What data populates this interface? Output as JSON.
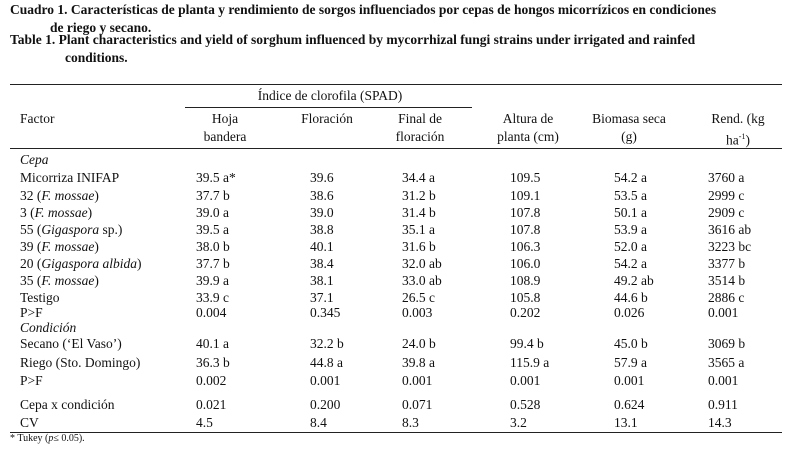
{
  "caption": {
    "es": [
      "Cuadro 1. Características de planta y rendimiento de sorgos influenciados por cepas de hongos micorrízicos en condiciones",
      "de riego y secano."
    ],
    "en": [
      "Table 1. Plant characteristics and yield of sorghum influenced by mycorrhizal fungi strains under irrigated and rainfed",
      "conditions."
    ]
  },
  "table": {
    "group_header": "Índice de clorofila (SPAD)",
    "columns": [
      [
        [
          "Factor"
        ]
      ],
      [
        [
          "Hoja"
        ],
        [
          "bandera"
        ]
      ],
      [
        [
          "Floración"
        ]
      ],
      [
        [
          "Final de"
        ],
        [
          "floración"
        ]
      ],
      [
        [
          "Altura de"
        ],
        [
          "planta (cm)"
        ]
      ],
      [
        [
          "Biomasa seca"
        ],
        [
          "(g)"
        ]
      ],
      [
        [
          "Rend. (kg"
        ],
        [
          "ha",
          "-1",
          ")"
        ]
      ]
    ],
    "rows": [
      {
        "section": "Cepa"
      },
      {
        "label": [
          "Micorriza INIFAP"
        ],
        "cells": [
          "39.5 a*",
          "39.6",
          "34.4 a",
          "109.5",
          "54.2 a",
          "3760 a"
        ]
      },
      {
        "label": [
          "32 (",
          "F. mossae",
          ")"
        ],
        "cells": [
          "37.7 b",
          "38.6",
          "31.2 b",
          "109.1",
          "53.5 a",
          "2999 c"
        ]
      },
      {
        "label": [
          "3 (",
          "F. mossae",
          ")"
        ],
        "cells": [
          "39.0 a",
          "39.0",
          "31.4 b",
          "107.8",
          "50.1 a",
          "2909 c"
        ]
      },
      {
        "label": [
          "55 (",
          "Gigaspora",
          " sp.)"
        ],
        "cells": [
          "39.5 a",
          "38.8",
          "35.1 a",
          "107.8",
          "53.9 a",
          "3616 ab"
        ]
      },
      {
        "label": [
          "39 (",
          "F. mossae",
          ")"
        ],
        "cells": [
          "38.0 b",
          "40.1",
          "31.6 b",
          "106.3",
          "52.0 a",
          "3223 bc"
        ]
      },
      {
        "label": [
          "20 (",
          "Gigaspora albida",
          ")"
        ],
        "cells": [
          "37.7 b",
          "38.4",
          "32.0 ab",
          "106.0",
          "54.2 a",
          "3377 b"
        ]
      },
      {
        "label": [
          "35 (",
          "F. mossae",
          ")"
        ],
        "cells": [
          "39.9 a",
          "38.1",
          "33.0 ab",
          "108.9",
          "49.2 ab",
          "3514 b"
        ]
      },
      {
        "label": [
          "Testigo"
        ],
        "cells": [
          "33.9 c",
          "37.1",
          "26.5 c",
          "105.8",
          "44.6 b",
          "2886 c"
        ]
      },
      {
        "label": [
          "P>F"
        ],
        "cells": [
          "0.004",
          "0.345",
          "0.003",
          "0.202",
          "0.026",
          "0.001"
        ]
      },
      {
        "section": "Condición"
      },
      {
        "label": [
          "Secano (‘El Vaso’)"
        ],
        "cells": [
          "40.1 a",
          "32.2 b",
          "24.0 b",
          "99.4 b",
          "45.0 b",
          "3069 b"
        ]
      },
      {
        "label": [
          "Riego (Sto. Domingo)"
        ],
        "cells": [
          "36.3 b",
          "44.8 a",
          "39.8 a",
          "115.9 a",
          "57.9 a",
          "3565 a"
        ]
      },
      {
        "label": [
          "P>F"
        ],
        "cells": [
          "0.002",
          "0.001",
          "0.001",
          "0.001",
          "0.001",
          "0.001"
        ]
      },
      {
        "label": [
          "Cepa x condición"
        ],
        "cells": [
          "0.021",
          "0.200",
          "0.071",
          "0.528",
          "0.624",
          "0.911"
        ]
      },
      {
        "label": [
          "CV"
        ],
        "cells": [
          "4.5",
          "8.4",
          "8.3",
          "3.2",
          "13.1",
          "14.3"
        ]
      }
    ],
    "footnote": [
      "* Tukey (",
      "p",
      "≤ 0.05)."
    ]
  }
}
